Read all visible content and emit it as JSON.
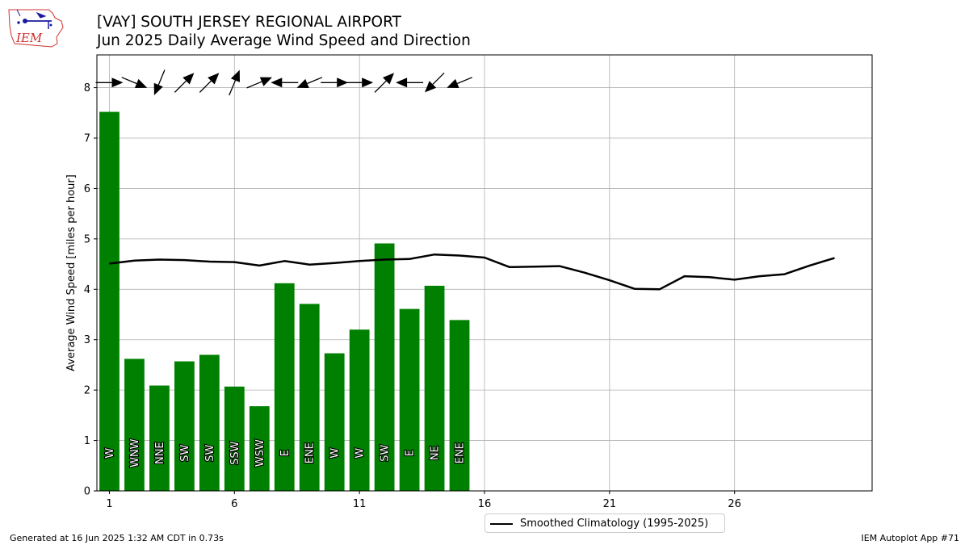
{
  "header": {
    "title": "[VAY] SOUTH JERSEY REGIONAL AIRPORT",
    "subtitle": "Jun 2025 Daily Average Wind Speed and Direction",
    "logo_text": "IEM"
  },
  "footer": {
    "left": "Generated at 16 Jun 2025 1:32 AM CDT in 0.73s",
    "right": "IEM Autoplot App #71"
  },
  "colors": {
    "bar": "#008000",
    "climatology_line": "#000000",
    "grid": "#b0b0b0",
    "logo_red": "#d03030",
    "logo_blue": "#1a1aa0"
  },
  "chart_data": {
    "type": "bar",
    "ylabel": "Average Wind Speed [miles per hour]",
    "xlabel": "",
    "xlim": [
      0.5,
      31.5
    ],
    "ylim": [
      0,
      8.65
    ],
    "xticks": [
      1,
      6,
      11,
      16,
      21,
      26
    ],
    "yticks": [
      0,
      1,
      2,
      3,
      4,
      5,
      6,
      7,
      8
    ],
    "grid": true,
    "legend_position": "bottom-center",
    "series": [
      {
        "type": "bar",
        "x": [
          1,
          2,
          3,
          4,
          5,
          6,
          7,
          8,
          9,
          10,
          11,
          12,
          13,
          14,
          15
        ],
        "values": [
          7.52,
          2.62,
          2.09,
          2.57,
          2.7,
          2.07,
          1.68,
          4.12,
          3.71,
          2.73,
          3.2,
          4.91,
          3.61,
          4.07,
          3.39
        ],
        "direction_labels": [
          "W",
          "WNW",
          "NNE",
          "SW",
          "SW",
          "SSW",
          "WSW",
          "E",
          "ENE",
          "W",
          "W",
          "SW",
          "E",
          "NE",
          "ENE"
        ]
      },
      {
        "type": "line",
        "name": "Smoothed Climatology (1995-2025)",
        "x": [
          1,
          2,
          3,
          4,
          5,
          6,
          7,
          8,
          9,
          10,
          11,
          12,
          13,
          14,
          15,
          16,
          17,
          18,
          19,
          20,
          21,
          22,
          23,
          24,
          25,
          26,
          27,
          28,
          29,
          30
        ],
        "values": [
          4.51,
          4.57,
          4.59,
          4.58,
          4.55,
          4.54,
          4.47,
          4.56,
          4.49,
          4.52,
          4.56,
          4.59,
          4.6,
          4.69,
          4.67,
          4.63,
          4.44,
          4.45,
          4.46,
          4.33,
          4.18,
          4.01,
          4.0,
          4.26,
          4.24,
          4.19,
          4.26,
          4.3,
          4.47,
          4.62
        ]
      }
    ],
    "wind_barbs": {
      "y": 8.1,
      "x": [
        1,
        2,
        3,
        4,
        5,
        6,
        7,
        8,
        9,
        10,
        11,
        12,
        13,
        14,
        15
      ],
      "from_degrees": [
        270,
        292.5,
        22.5,
        225,
        225,
        202.5,
        247.5,
        90,
        67.5,
        270,
        270,
        225,
        90,
        45,
        67.5
      ]
    }
  }
}
